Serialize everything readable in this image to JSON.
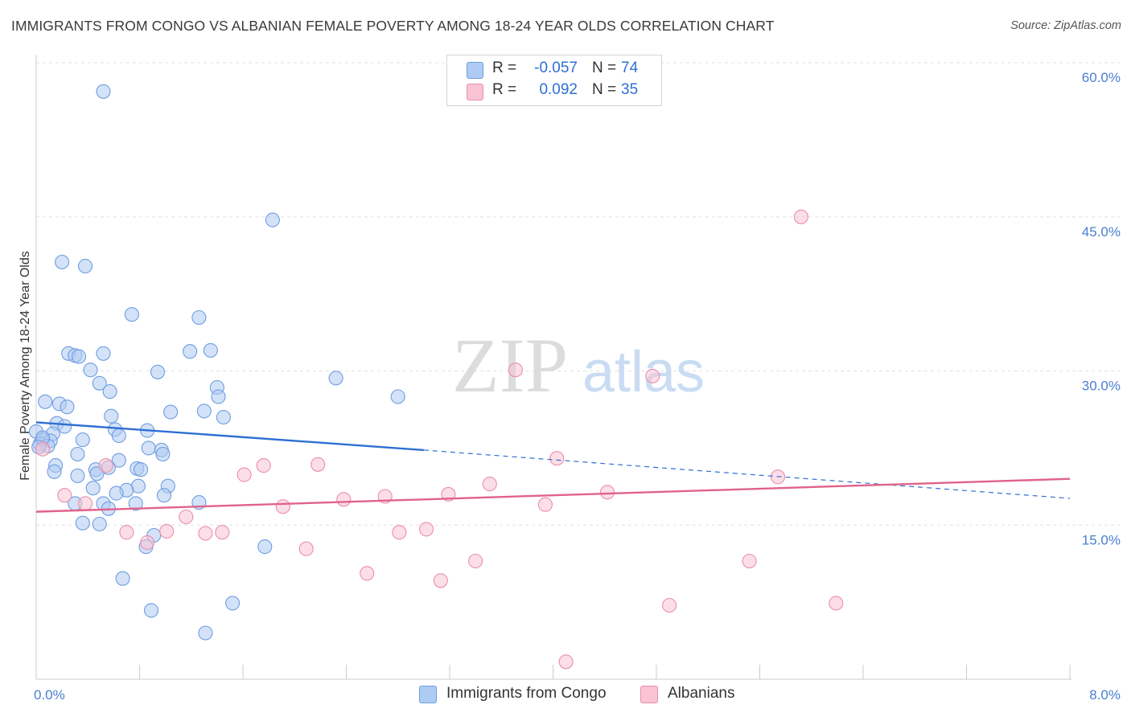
{
  "title": "IMMIGRANTS FROM CONGO VS ALBANIAN FEMALE POVERTY AMONG 18-24 YEAR OLDS CORRELATION CHART",
  "source": "Source: ZipAtlas.com",
  "watermark": {
    "zip": "ZIP",
    "atlas": "atlas"
  },
  "legend": {
    "rows": [
      {
        "r_label": "R =",
        "r_value": "-0.057",
        "n_label": "N =",
        "n_value": "74",
        "color": "#aecbf3",
        "border": "#6f9de0"
      },
      {
        "r_label": "R =",
        "r_value": "0.092",
        "n_label": "N =",
        "n_value": "35",
        "color": "#f9c3d3",
        "border": "#ea8eab"
      }
    ]
  },
  "bottom_legend": [
    {
      "label": "Immigrants from Congo",
      "color": "#aecbf3",
      "border": "#6f9de0"
    },
    {
      "label": "Albanians",
      "color": "#f9c3d3",
      "border": "#ea8eab"
    }
  ],
  "chart_data": {
    "type": "scatter",
    "title": "IMMIGRANTS FROM CONGO VS ALBANIAN FEMALE POVERTY AMONG 18-24 YEAR OLDS CORRELATION CHART",
    "xlabel": "",
    "ylabel": "Female Poverty Among 18-24 Year Olds",
    "xlim": [
      0,
      8
    ],
    "ylim": [
      0,
      60
    ],
    "x_tick_labels": [
      "0.0%",
      "8.0%"
    ],
    "y_ticks": [
      15,
      30,
      45,
      60
    ],
    "y_tick_labels": [
      "15.0%",
      "30.0%",
      "45.0%",
      "60.0%"
    ],
    "grid": true,
    "legend_position": "top-center",
    "series": [
      {
        "name": "Immigrants from Congo",
        "color": "#6f9de0",
        "fill": "#aecbf3",
        "trend": {
          "x0": 0,
          "y0": 25.0,
          "x1": 3.0,
          "y1": 22.3,
          "dash_to_x": 8.0,
          "dash_to_y": 17.6,
          "color": "#2e6fd3"
        },
        "points": [
          [
            0.52,
            57.2
          ],
          [
            1.83,
            44.7
          ],
          [
            0.2,
            40.6
          ],
          [
            0.38,
            40.2
          ],
          [
            0.74,
            35.5
          ],
          [
            1.26,
            35.2
          ],
          [
            0.25,
            31.7
          ],
          [
            0.3,
            31.5
          ],
          [
            0.33,
            31.4
          ],
          [
            0.52,
            31.7
          ],
          [
            1.19,
            31.9
          ],
          [
            1.35,
            32.0
          ],
          [
            0.42,
            30.1
          ],
          [
            0.94,
            29.9
          ],
          [
            0.49,
            28.8
          ],
          [
            1.4,
            28.4
          ],
          [
            0.57,
            28.0
          ],
          [
            1.41,
            27.5
          ],
          [
            2.8,
            27.5
          ],
          [
            0.07,
            27.0
          ],
          [
            0.18,
            26.8
          ],
          [
            0.24,
            26.5
          ],
          [
            1.04,
            26.0
          ],
          [
            1.3,
            26.1
          ],
          [
            0.58,
            25.6
          ],
          [
            1.45,
            25.5
          ],
          [
            0.16,
            24.9
          ],
          [
            0.22,
            24.6
          ],
          [
            0.61,
            24.3
          ],
          [
            0.86,
            24.2
          ],
          [
            0.0,
            24.1
          ],
          [
            0.13,
            23.9
          ],
          [
            0.64,
            23.7
          ],
          [
            0.05,
            23.3
          ],
          [
            0.11,
            23.2
          ],
          [
            0.36,
            23.3
          ],
          [
            0.03,
            22.9
          ],
          [
            0.09,
            22.7
          ],
          [
            0.87,
            22.5
          ],
          [
            0.97,
            22.3
          ],
          [
            0.32,
            21.9
          ],
          [
            0.98,
            21.9
          ],
          [
            0.64,
            21.3
          ],
          [
            0.15,
            20.8
          ],
          [
            0.56,
            20.6
          ],
          [
            0.46,
            20.4
          ],
          [
            0.78,
            20.5
          ],
          [
            0.81,
            20.4
          ],
          [
            0.14,
            20.2
          ],
          [
            0.47,
            20.0
          ],
          [
            0.32,
            19.8
          ],
          [
            0.44,
            18.6
          ],
          [
            0.79,
            18.8
          ],
          [
            1.02,
            18.8
          ],
          [
            0.7,
            18.4
          ],
          [
            0.62,
            18.1
          ],
          [
            0.99,
            17.9
          ],
          [
            0.3,
            17.1
          ],
          [
            0.77,
            17.1
          ],
          [
            0.52,
            17.1
          ],
          [
            1.26,
            17.2
          ],
          [
            0.56,
            16.6
          ],
          [
            0.36,
            15.2
          ],
          [
            0.49,
            15.1
          ],
          [
            0.91,
            14.0
          ],
          [
            0.85,
            12.9
          ],
          [
            1.77,
            12.9
          ],
          [
            0.67,
            9.8
          ],
          [
            2.32,
            29.3
          ],
          [
            0.89,
            6.7
          ],
          [
            1.52,
            7.4
          ],
          [
            1.31,
            4.5
          ],
          [
            0.05,
            23.5
          ],
          [
            0.02,
            22.6
          ]
        ]
      },
      {
        "name": "Albanians",
        "color": "#ea8eab",
        "fill": "#f9c3d3",
        "trend": {
          "x0": 0,
          "y0": 16.3,
          "x1": 8.0,
          "y1": 19.5,
          "color": "#e0628b"
        },
        "points": [
          [
            0.05,
            22.4
          ],
          [
            5.92,
            45.0
          ],
          [
            3.71,
            30.1
          ],
          [
            4.77,
            29.5
          ],
          [
            0.22,
            17.9
          ],
          [
            0.7,
            14.3
          ],
          [
            0.86,
            13.3
          ],
          [
            1.01,
            14.4
          ],
          [
            1.16,
            15.8
          ],
          [
            1.31,
            14.2
          ],
          [
            1.44,
            14.3
          ],
          [
            1.61,
            19.9
          ],
          [
            1.76,
            20.8
          ],
          [
            1.91,
            16.8
          ],
          [
            2.09,
            12.7
          ],
          [
            2.18,
            20.9
          ],
          [
            2.38,
            17.5
          ],
          [
            2.56,
            10.3
          ],
          [
            2.7,
            17.8
          ],
          [
            2.81,
            14.3
          ],
          [
            3.02,
            14.6
          ],
          [
            3.13,
            9.6
          ],
          [
            3.19,
            18.0
          ],
          [
            3.4,
            11.5
          ],
          [
            3.51,
            19.0
          ],
          [
            3.94,
            17.0
          ],
          [
            4.03,
            21.5
          ],
          [
            4.42,
            18.2
          ],
          [
            4.9,
            7.2
          ],
          [
            5.52,
            11.5
          ],
          [
            5.74,
            19.7
          ],
          [
            6.19,
            7.4
          ],
          [
            0.38,
            17.1
          ],
          [
            0.54,
            20.8
          ],
          [
            4.1,
            1.7
          ]
        ]
      }
    ]
  }
}
